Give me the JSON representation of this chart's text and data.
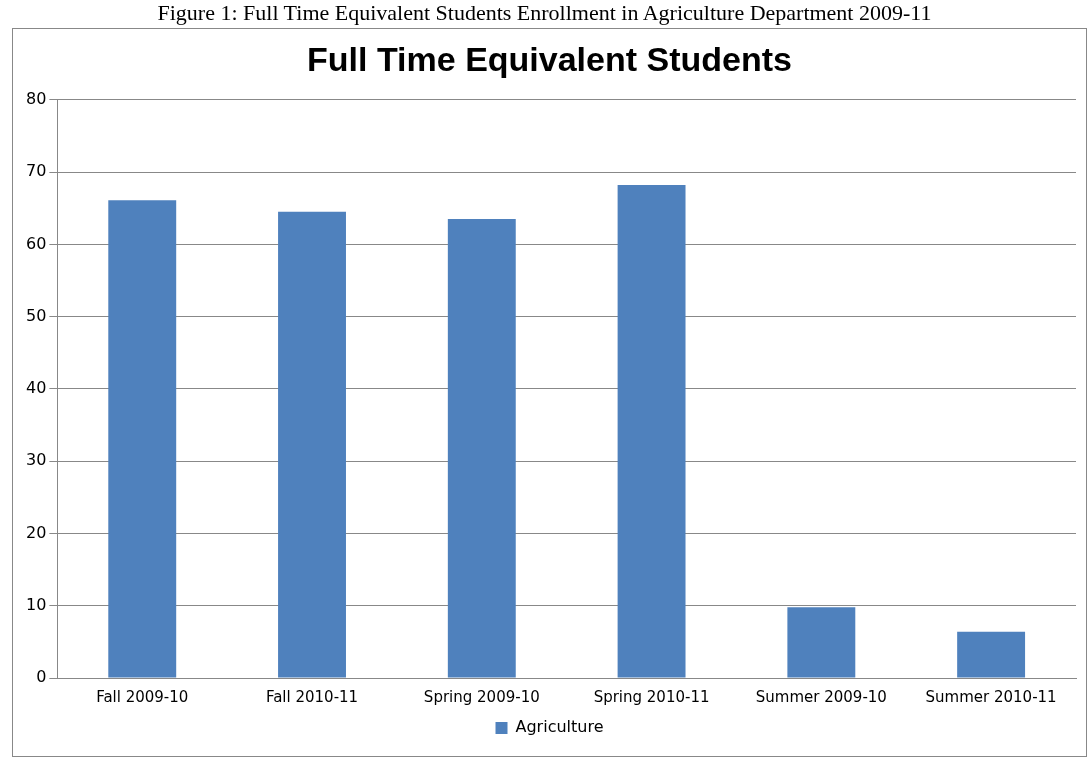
{
  "chart_data": {
    "type": "bar",
    "title": "Full Time Equivalent Students",
    "annotations": [
      "Figure 1: Full Time Equivalent Students Enrollment in Agriculture Department 2009-11"
    ],
    "categories": [
      "Fall 2009-10",
      "Fall 2010-11",
      "Spring 2009-10",
      "Spring 2010-11",
      "Summer 2009-10",
      "Summer 2010-11"
    ],
    "series": [
      {
        "name": "Agriculture",
        "color": "#4f81bd",
        "values": [
          66.1,
          64.5,
          63.5,
          68.2,
          9.8,
          6.4
        ]
      }
    ],
    "ylim": [
      0,
      80
    ],
    "yticks": [
      0,
      10,
      20,
      30,
      40,
      50,
      60,
      70,
      80
    ],
    "grid": "y",
    "legend": "bottom"
  }
}
